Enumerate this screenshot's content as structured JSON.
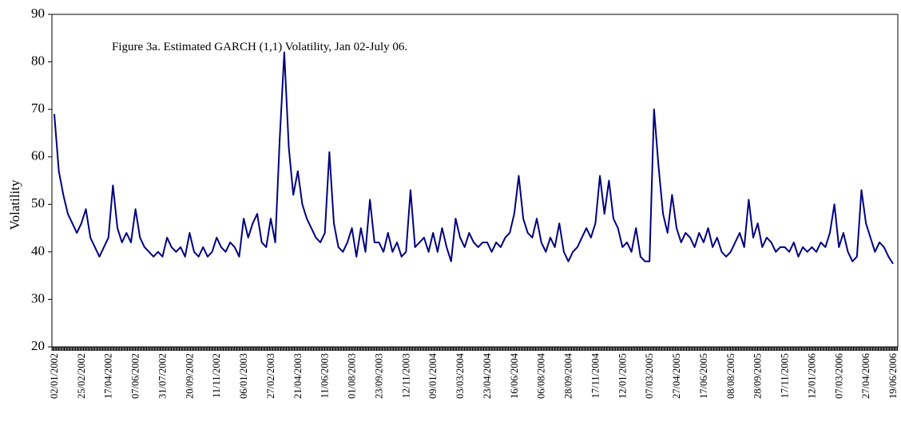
{
  "chart_data": {
    "type": "line",
    "title": "Figure 3a. Estimated GARCH (1,1) Volatility, Jan 02-July 06.",
    "y_label": "Volatility",
    "categories": [
      "02/01/2002",
      null,
      null,
      null,
      null,
      null,
      "25/02/2002",
      null,
      null,
      null,
      null,
      null,
      "17/04/2002",
      null,
      null,
      null,
      null,
      null,
      "07/06/2002",
      null,
      null,
      null,
      null,
      null,
      "31/07/2002",
      null,
      null,
      null,
      null,
      null,
      "20/09/2002",
      null,
      null,
      null,
      null,
      null,
      "11/11/2002",
      null,
      null,
      null,
      null,
      null,
      "06/01/2003",
      null,
      null,
      null,
      null,
      null,
      "27/02/2003",
      null,
      null,
      null,
      null,
      null,
      "21/04/2003",
      null,
      null,
      null,
      null,
      null,
      "11/06/2003",
      null,
      null,
      null,
      null,
      null,
      "01/08/2003",
      null,
      null,
      null,
      null,
      null,
      "23/09/2003",
      null,
      null,
      null,
      null,
      null,
      "12/11/2003",
      null,
      null,
      null,
      null,
      null,
      "09/01/2004",
      null,
      null,
      null,
      null,
      null,
      "03/03/2004",
      null,
      null,
      null,
      null,
      null,
      "23/04/2004",
      null,
      null,
      null,
      null,
      null,
      "16/06/2004",
      null,
      null,
      null,
      null,
      null,
      "06/08/2004",
      null,
      null,
      null,
      null,
      null,
      "28/09/2004",
      null,
      null,
      null,
      null,
      null,
      "17/11/2004",
      null,
      null,
      null,
      null,
      null,
      "12/01/2005",
      null,
      null,
      null,
      null,
      null,
      "07/03/2005",
      null,
      null,
      null,
      null,
      null,
      "27/04/2005",
      null,
      null,
      null,
      null,
      null,
      "17/06/2005",
      null,
      null,
      null,
      null,
      null,
      "08/08/2005",
      null,
      null,
      null,
      null,
      null,
      "28/09/2005",
      null,
      null,
      null,
      null,
      null,
      "17/11/2005",
      null,
      null,
      null,
      null,
      null,
      "12/01/2006",
      null,
      null,
      null,
      null,
      null,
      "07/03/2006",
      null,
      null,
      null,
      null,
      null,
      "27/04/2006",
      null,
      null,
      null,
      null,
      null,
      "19/06/2006"
    ],
    "series": [
      {
        "color": "#000080",
        "values": [
          69,
          57,
          52,
          48,
          46,
          44,
          46,
          49,
          43,
          41,
          39,
          41,
          43,
          54,
          45,
          42,
          44,
          42,
          49,
          43,
          41,
          40,
          39,
          40,
          39,
          43,
          41,
          40,
          41,
          39,
          44,
          40,
          39,
          41,
          39,
          40,
          43,
          41,
          40,
          42,
          41,
          39,
          47,
          43,
          46,
          48,
          42,
          41,
          47,
          42,
          64,
          82,
          62,
          52,
          57,
          50,
          47,
          45,
          43,
          42,
          44,
          61,
          46,
          41,
          40,
          42,
          45,
          39,
          45,
          40,
          51,
          42,
          42,
          40,
          44,
          40,
          42,
          39,
          40,
          53,
          41,
          42,
          43,
          40,
          44,
          40,
          45,
          41,
          38,
          47,
          43,
          41,
          44,
          42,
          41,
          42,
          42,
          40,
          42,
          41,
          43,
          44,
          48,
          56,
          47,
          44,
          43,
          47,
          42,
          40,
          43,
          41,
          46,
          40,
          38,
          40,
          41,
          43,
          45,
          43,
          46,
          56,
          48,
          55,
          47,
          45,
          41,
          42,
          40,
          45,
          39,
          38,
          38,
          70,
          58,
          48,
          44,
          52,
          45,
          42,
          44,
          43,
          41,
          44,
          42,
          45,
          41,
          43,
          40,
          39,
          40,
          42,
          44,
          41,
          51,
          43,
          46,
          41,
          43,
          42,
          40,
          41,
          41,
          40,
          42,
          39,
          41,
          40,
          41,
          40,
          42,
          41,
          44,
          50,
          41,
          44,
          40,
          38,
          39,
          53,
          46,
          43,
          40,
          42,
          41,
          39,
          37.5
        ]
      }
    ],
    "ylim": [
      20,
      90
    ],
    "yticks": [
      20,
      30,
      40,
      50,
      60,
      70,
      80,
      90
    ],
    "grid": false
  }
}
